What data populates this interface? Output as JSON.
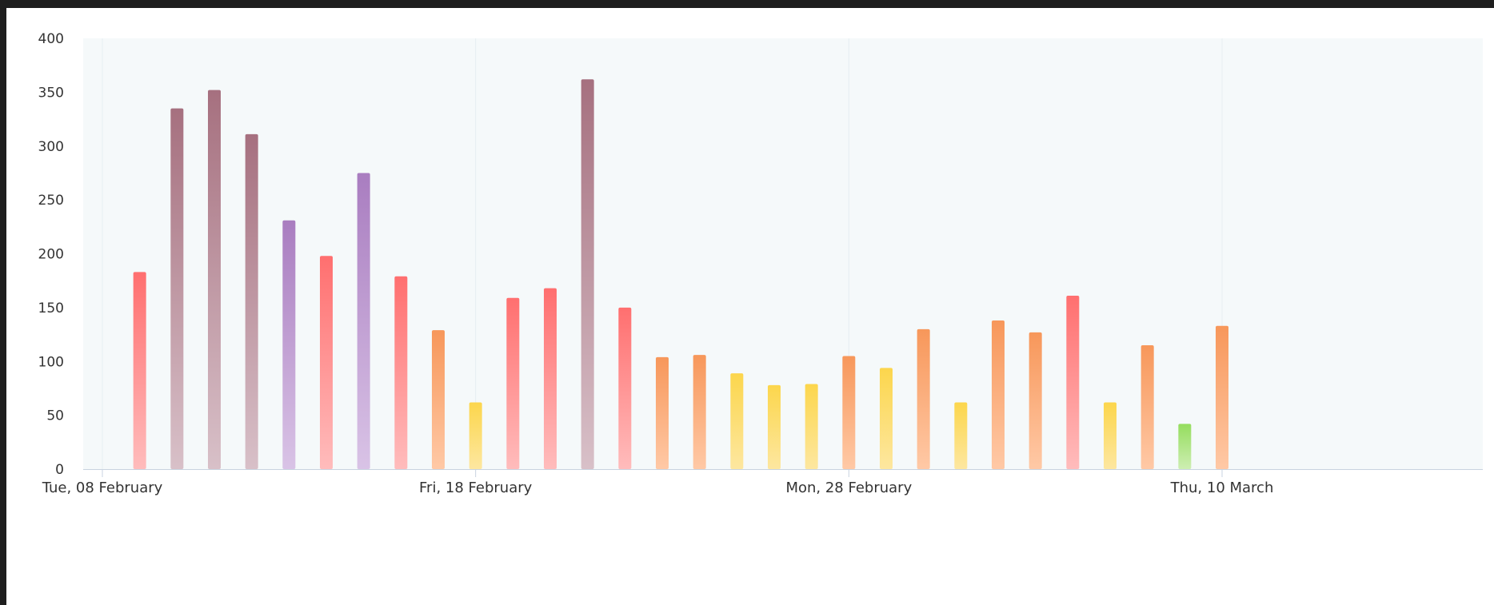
{
  "chart_data": {
    "type": "bar",
    "title": "",
    "xlabel": "",
    "ylabel": "",
    "ylim": [
      0,
      400
    ],
    "yticks": [
      0,
      50,
      100,
      150,
      200,
      250,
      300,
      350,
      400
    ],
    "grid": false,
    "legend": "none",
    "x_axis": {
      "type": "date",
      "range": [
        "2022-02-08",
        "2022-03-10"
      ],
      "tick_labels": [
        {
          "date": "2022-02-08",
          "label": "Tue, 08 February"
        },
        {
          "date": "2022-02-18",
          "label": "Fri, 18 February"
        },
        {
          "date": "2022-02-28",
          "label": "Mon, 28 February"
        },
        {
          "date": "2022-03-10",
          "label": "Thu, 10 March"
        }
      ]
    },
    "plot_background": "#f5f9fa",
    "palette": {
      "red": [
        "#ff6f6f",
        "#ffbcbc"
      ],
      "mauve": [
        "#a6707f",
        "#d8c0c8"
      ],
      "purple": [
        "#a97dc0",
        "#d9c3e6"
      ],
      "orange": [
        "#f7975a",
        "#ffc9a6"
      ],
      "yellow": [
        "#fcd64c",
        "#fde7a0"
      ],
      "green": [
        "#95dd5e",
        "#cdeeb2"
      ]
    },
    "series": [
      {
        "values": [
          {
            "date": "2022-02-09",
            "value": 183,
            "color": "red"
          },
          {
            "date": "2022-02-10",
            "value": 335,
            "color": "mauve"
          },
          {
            "date": "2022-02-11",
            "value": 352,
            "color": "mauve"
          },
          {
            "date": "2022-02-12",
            "value": 311,
            "color": "mauve"
          },
          {
            "date": "2022-02-13",
            "value": 231,
            "color": "purple"
          },
          {
            "date": "2022-02-14",
            "value": 198,
            "color": "red"
          },
          {
            "date": "2022-02-15",
            "value": 275,
            "color": "purple"
          },
          {
            "date": "2022-02-16",
            "value": 179,
            "color": "red"
          },
          {
            "date": "2022-02-17",
            "value": 129,
            "color": "orange"
          },
          {
            "date": "2022-02-18",
            "value": 62,
            "color": "yellow"
          },
          {
            "date": "2022-02-19",
            "value": 159,
            "color": "red"
          },
          {
            "date": "2022-02-20",
            "value": 168,
            "color": "red"
          },
          {
            "date": "2022-02-21",
            "value": 362,
            "color": "mauve"
          },
          {
            "date": "2022-02-22",
            "value": 150,
            "color": "red"
          },
          {
            "date": "2022-02-23",
            "value": 104,
            "color": "orange"
          },
          {
            "date": "2022-02-24",
            "value": 106,
            "color": "orange"
          },
          {
            "date": "2022-02-25",
            "value": 89,
            "color": "yellow"
          },
          {
            "date": "2022-02-26",
            "value": 78,
            "color": "yellow"
          },
          {
            "date": "2022-02-27",
            "value": 79,
            "color": "yellow"
          },
          {
            "date": "2022-02-28",
            "value": 105,
            "color": "orange"
          },
          {
            "date": "2022-03-01",
            "value": 94,
            "color": "yellow"
          },
          {
            "date": "2022-03-02",
            "value": 130,
            "color": "orange"
          },
          {
            "date": "2022-03-03",
            "value": 62,
            "color": "yellow"
          },
          {
            "date": "2022-03-04",
            "value": 138,
            "color": "orange"
          },
          {
            "date": "2022-03-05",
            "value": 127,
            "color": "orange"
          },
          {
            "date": "2022-03-06",
            "value": 161,
            "color": "red"
          },
          {
            "date": "2022-03-07",
            "value": 62,
            "color": "yellow"
          },
          {
            "date": "2022-03-08",
            "value": 115,
            "color": "orange"
          },
          {
            "date": "2022-03-09",
            "value": 42,
            "color": "green"
          },
          {
            "date": "2022-03-10",
            "value": 133,
            "color": "orange"
          }
        ]
      }
    ]
  }
}
